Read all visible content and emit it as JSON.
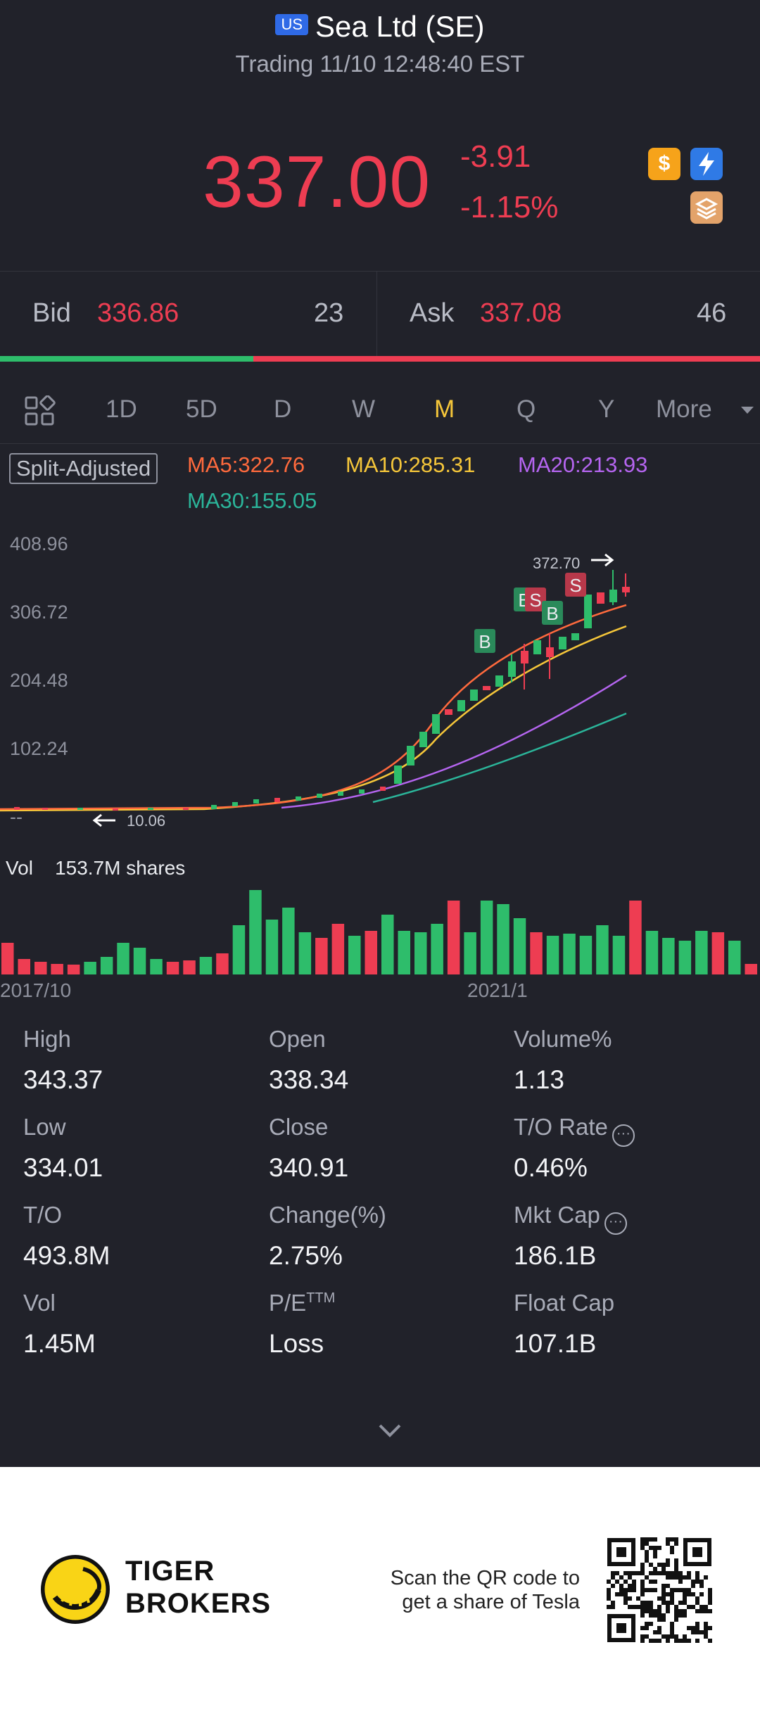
{
  "header": {
    "market_badge": "US",
    "title": "Sea Ltd (SE)",
    "status": "Trading 11/10 12:48:40 EST"
  },
  "quote": {
    "price": "337.00",
    "change": "-3.91",
    "change_pct": "-1.15%"
  },
  "badges": [
    {
      "name": "dollar-icon",
      "glyph": "$",
      "color": "#f6a31a"
    },
    {
      "name": "lightning-icon",
      "glyph": "⚡",
      "color": "#2f7ae6"
    },
    {
      "name": "stack-icon",
      "glyph": "≡",
      "color": "#e3a36a"
    }
  ],
  "order_book": {
    "bid_label": "Bid",
    "bid_price": "336.86",
    "bid_qty": "23",
    "ask_label": "Ask",
    "ask_price": "337.08",
    "ask_qty": "46"
  },
  "tabs": [
    "1D",
    "5D",
    "D",
    "W",
    "M",
    "Q",
    "Y",
    "More"
  ],
  "active_tab": "M",
  "indicators": {
    "split": "Split-Adjusted",
    "ma5": "MA5:322.76",
    "ma10": "MA10:285.31",
    "ma20": "MA20:213.93",
    "ma30": "MA30:155.05"
  },
  "colors": {
    "ma5": "#ff6a3d",
    "ma10": "#f5c63a",
    "ma20": "#b565f0",
    "ma30": "#2bb59a",
    "up": "#2ebd6b",
    "down": "#ee3d52"
  },
  "chart_data": {
    "type": "candlestick",
    "y_ticks": [
      "408.96",
      "306.72",
      "204.48",
      "102.24",
      "--"
    ],
    "high_marker": "372.70",
    "low_marker": "10.06",
    "x_ticks": [
      "2017/10",
      "2021/1"
    ],
    "trade_markers": [
      "B",
      "B",
      "S",
      "B",
      "S"
    ]
  },
  "volume": {
    "label": "Vol",
    "value": "153.7M shares"
  },
  "stats": [
    {
      "label": "High",
      "value": "343.37"
    },
    {
      "label": "Open",
      "value": "338.34"
    },
    {
      "label": "Volume%",
      "value": "1.13"
    },
    {
      "label": "Low",
      "value": "334.01"
    },
    {
      "label": "Close",
      "value": "340.91"
    },
    {
      "label": "T/O Rate",
      "value": "0.46%"
    },
    {
      "label": "T/O",
      "value": "493.8M"
    },
    {
      "label": "Change(%)",
      "value": "2.75%"
    },
    {
      "label": "Mkt Cap",
      "value": "186.1B"
    },
    {
      "label": "Vol",
      "value": "1.45M"
    },
    {
      "label": "P/E",
      "value": "Loss"
    },
    {
      "label": "Float Cap",
      "value": "107.1B"
    }
  ],
  "pe_superscript": "TTM",
  "footer": {
    "brand_line1": "TIGER",
    "brand_line2": "BROKERS",
    "scan_line1": "Scan the QR code to",
    "scan_line2": "get a share of Tesla"
  }
}
